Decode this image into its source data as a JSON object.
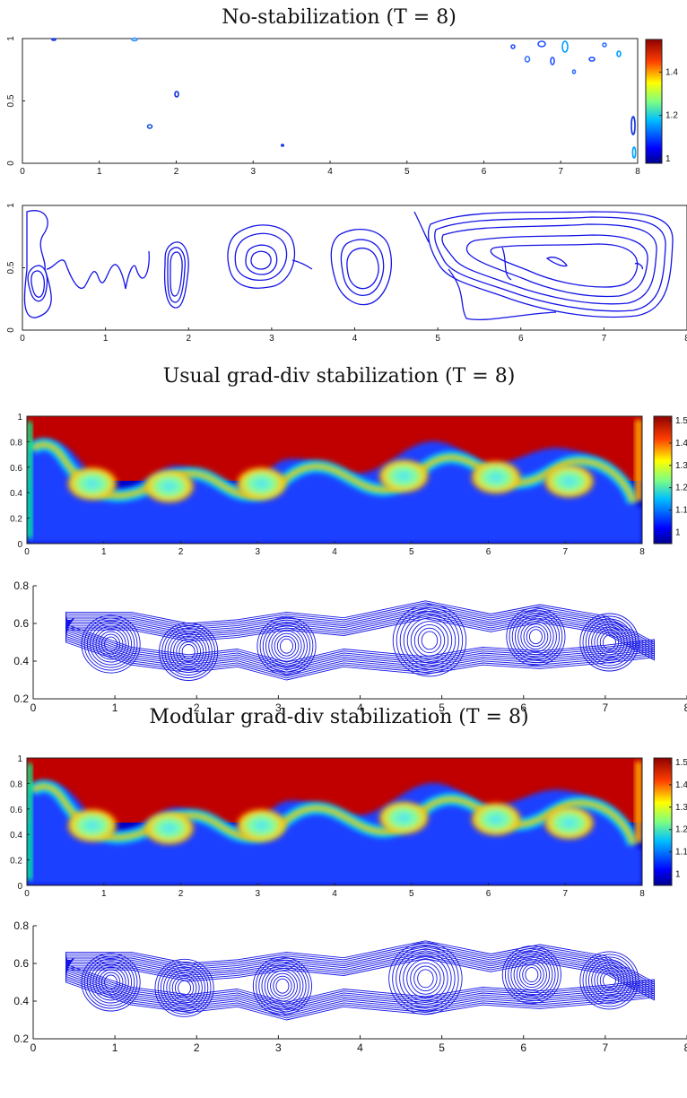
{
  "titles": {
    "no_stab": "No-stabilization (T = 8)",
    "usual": "Usual grad-div stabilization (T = 8)",
    "modular": "Modular grad-div stabilization (T = 8)"
  },
  "colors": {
    "contour_blue": "#1414e6",
    "jet": [
      "#00008f",
      "#0000ff",
      "#00bfff",
      "#00ffbf",
      "#7fff7f",
      "#ffff00",
      "#ff8000",
      "#ff0000",
      "#8f0000"
    ]
  },
  "chart_data": [
    {
      "id": "no_stab_density",
      "type": "heatmap",
      "title": "No-stabilization (T = 8)",
      "xlim": [
        0,
        8
      ],
      "ylim": [
        0,
        1
      ],
      "x_ticks": [
        "0",
        "1",
        "2",
        "3",
        "4",
        "5",
        "6",
        "7",
        "8"
      ],
      "y_ticks": [
        "0",
        "0.5",
        "1"
      ],
      "colorbar": {
        "min": 0.98,
        "max": 1.55,
        "ticks": [
          "1",
          "1.2",
          "1.4"
        ]
      },
      "field": "mostly blank with small isolated contour blobs near x=2, x=1.6, x=6.2-7.5 top edge"
    },
    {
      "id": "no_stab_contour",
      "type": "line",
      "xlim": [
        0,
        8
      ],
      "ylim": [
        0,
        1
      ],
      "x_ticks": [
        "0",
        "1",
        "2",
        "3",
        "4",
        "5",
        "6",
        "7",
        "8"
      ],
      "y_ticks": [
        "0",
        "0.5",
        "1"
      ],
      "vortex_centers_x": [
        0.2,
        1.95,
        2.95,
        3.95,
        6.5
      ]
    },
    {
      "id": "usual_density",
      "type": "heatmap",
      "title": "Usual grad-div stabilization (T = 8)",
      "xlim": [
        0,
        8
      ],
      "ylim": [
        0,
        1
      ],
      "x_ticks": [
        "0",
        "1",
        "2",
        "3",
        "4",
        "5",
        "6",
        "7",
        "8"
      ],
      "y_ticks": [
        "0",
        "0.2",
        "0.4",
        "0.6",
        "0.8",
        "1"
      ],
      "colorbar": {
        "min": 0.95,
        "max": 1.52,
        "ticks": [
          "1",
          "1.1",
          "1.2",
          "1.3",
          "1.4",
          "1.5"
        ]
      },
      "vortex_centers_x": [
        0.85,
        1.85,
        3.05,
        4.9,
        6.1,
        7.05
      ]
    },
    {
      "id": "usual_contour",
      "type": "line",
      "xlim": [
        0,
        8
      ],
      "ylim": [
        0.2,
        0.8
      ],
      "x_ticks": [
        "0",
        "1",
        "2",
        "3",
        "4",
        "5",
        "6",
        "7",
        "8"
      ],
      "y_ticks": [
        "0.2",
        "0.4",
        "0.6",
        "0.8"
      ],
      "vortex_centers": [
        [
          0.95,
          0.49
        ],
        [
          1.9,
          0.45
        ],
        [
          3.1,
          0.48
        ],
        [
          4.85,
          0.51
        ],
        [
          6.15,
          0.53
        ],
        [
          7.05,
          0.5
        ]
      ]
    },
    {
      "id": "modular_density",
      "type": "heatmap",
      "title": "Modular grad-div stabilization (T = 8)",
      "xlim": [
        0,
        8
      ],
      "ylim": [
        0,
        1
      ],
      "x_ticks": [
        "0",
        "1",
        "2",
        "3",
        "4",
        "5",
        "6",
        "7",
        "8"
      ],
      "y_ticks": [
        "0",
        "0.2",
        "0.4",
        "0.6",
        "0.8",
        "1"
      ],
      "colorbar": {
        "min": 0.95,
        "max": 1.52,
        "ticks": [
          "1",
          "1.1",
          "1.2",
          "1.3",
          "1.4",
          "1.5"
        ]
      },
      "vortex_centers_x": [
        0.85,
        1.85,
        3.05,
        4.9,
        6.1,
        7.05
      ]
    },
    {
      "id": "modular_contour",
      "type": "line",
      "xlim": [
        0,
        8
      ],
      "ylim": [
        0.2,
        0.8
      ],
      "x_ticks": [
        "0",
        "1",
        "2",
        "3",
        "4",
        "5",
        "6",
        "7",
        "8"
      ],
      "y_ticks": [
        "0.2",
        "0.4",
        "0.6",
        "0.8"
      ],
      "vortex_centers": [
        [
          0.95,
          0.5
        ],
        [
          1.85,
          0.47
        ],
        [
          3.05,
          0.48
        ],
        [
          4.8,
          0.52
        ],
        [
          6.1,
          0.54
        ],
        [
          7.05,
          0.51
        ]
      ]
    }
  ]
}
